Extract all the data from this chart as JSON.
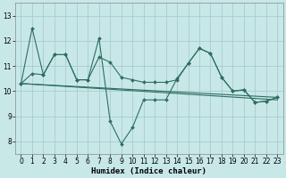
{
  "xlabel": "Humidex (Indice chaleur)",
  "bg_color": "#c8e8e8",
  "grid_color": "#a8cccc",
  "line_color": "#2e6e60",
  "xlim": [
    -0.5,
    23.5
  ],
  "ylim": [
    7.5,
    13.5
  ],
  "xticks": [
    0,
    1,
    2,
    3,
    4,
    5,
    6,
    7,
    8,
    9,
    10,
    11,
    12,
    13,
    14,
    15,
    16,
    17,
    18,
    19,
    20,
    21,
    22,
    23
  ],
  "yticks": [
    8,
    9,
    10,
    11,
    12,
    13
  ],
  "line1_x": [
    0,
    1,
    2,
    3,
    4,
    5,
    6,
    7,
    8,
    9,
    10,
    11,
    12,
    13,
    14,
    15,
    16,
    17,
    18,
    19,
    20,
    21,
    22,
    23
  ],
  "line1_y": [
    10.3,
    12.5,
    10.65,
    11.45,
    11.45,
    10.45,
    10.45,
    12.1,
    8.8,
    7.9,
    8.55,
    9.65,
    9.65,
    9.65,
    10.5,
    11.1,
    11.7,
    11.5,
    10.55,
    10.0,
    10.05,
    9.55,
    9.6,
    9.75
  ],
  "line2_x": [
    0,
    1,
    2,
    3,
    4,
    5,
    6,
    7,
    8,
    9,
    10,
    11,
    12,
    13,
    14,
    15,
    16,
    17,
    18,
    19,
    20,
    21,
    22,
    23
  ],
  "line2_y": [
    10.3,
    10.7,
    10.65,
    11.45,
    11.45,
    10.45,
    10.45,
    11.35,
    11.15,
    10.55,
    10.45,
    10.35,
    10.35,
    10.35,
    10.45,
    11.1,
    11.7,
    11.5,
    10.55,
    10.0,
    10.05,
    9.55,
    9.6,
    9.75
  ],
  "line3_x": [
    0,
    23
  ],
  "line3_y": [
    10.3,
    9.75
  ],
  "line4_x": [
    0,
    23
  ],
  "line4_y": [
    10.3,
    9.65
  ]
}
